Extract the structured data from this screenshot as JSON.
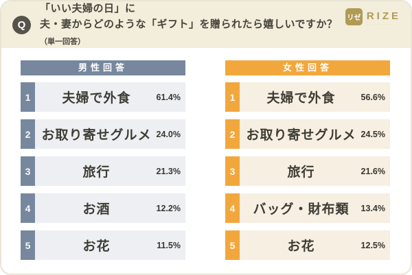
{
  "question": {
    "q_label": "Q",
    "line1": "「いい夫婦の日」に",
    "line2": "夫・妻からどのような「ギフト」を贈られたら嬉しいですか？",
    "note": "（単一回答）"
  },
  "logo": {
    "mark": "リゼ",
    "name": "RIZE",
    "tagline": "·········"
  },
  "columns": [
    {
      "title": "男性回答",
      "accent": "#77889E",
      "row_bg": "#EDEFF3",
      "items": [
        {
          "rank": "1",
          "label": "夫婦で外食",
          "value": "61.4%"
        },
        {
          "rank": "2",
          "label": "お取り寄せグルメ",
          "value": "24.0%"
        },
        {
          "rank": "3",
          "label": "旅行",
          "value": "21.3%"
        },
        {
          "rank": "4",
          "label": "お酒",
          "value": "12.2%"
        },
        {
          "rank": "5",
          "label": "お花",
          "value": "11.5%"
        }
      ]
    },
    {
      "title": "女性回答",
      "accent": "#F2A73C",
      "row_bg": "#F6EFE2",
      "items": [
        {
          "rank": "1",
          "label": "夫婦で外食",
          "value": "56.6%"
        },
        {
          "rank": "2",
          "label": "お取り寄せグルメ",
          "value": "24.5%"
        },
        {
          "rank": "3",
          "label": "旅行",
          "value": "21.6%"
        },
        {
          "rank": "4",
          "label": "バッグ・財布類",
          "value": "13.4%"
        },
        {
          "rank": "5",
          "label": "お花",
          "value": "12.5%"
        }
      ]
    }
  ],
  "chart_data": {
    "type": "table",
    "title": "「いい夫婦の日」に夫・妻からどのような「ギフト」を贈られたら嬉しいですか？（単一回答）",
    "groups": [
      {
        "name": "男性回答",
        "ranking": [
          {
            "rank": 1,
            "label": "夫婦で外食",
            "pct": 61.4
          },
          {
            "rank": 2,
            "label": "お取り寄せグルメ",
            "pct": 24.0
          },
          {
            "rank": 3,
            "label": "旅行",
            "pct": 21.3
          },
          {
            "rank": 4,
            "label": "お酒",
            "pct": 12.2
          },
          {
            "rank": 5,
            "label": "お花",
            "pct": 11.5
          }
        ]
      },
      {
        "name": "女性回答",
        "ranking": [
          {
            "rank": 1,
            "label": "夫婦で外食",
            "pct": 56.6
          },
          {
            "rank": 2,
            "label": "お取り寄せグルメ",
            "pct": 24.5
          },
          {
            "rank": 3,
            "label": "旅行",
            "pct": 21.6
          },
          {
            "rank": 4,
            "label": "バッグ・財布類",
            "pct": 13.4
          },
          {
            "rank": 5,
            "label": "お花",
            "pct": 12.5
          }
        ]
      }
    ],
    "colors": {
      "male_accent": "#77889E",
      "female_accent": "#F2A73C",
      "male_row_bg": "#EDEFF3",
      "female_row_bg": "#F6EFE2",
      "band_bg": "#F3EDDB",
      "logo_gold": "#B09B55"
    },
    "legend_position": "column headers",
    "grid": false
  }
}
